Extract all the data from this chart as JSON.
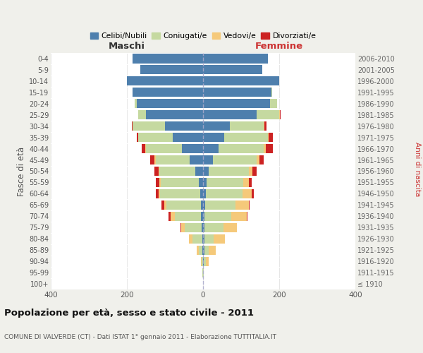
{
  "age_groups": [
    "100+",
    "95-99",
    "90-94",
    "85-89",
    "80-84",
    "75-79",
    "70-74",
    "65-69",
    "60-64",
    "55-59",
    "50-54",
    "45-49",
    "40-44",
    "35-39",
    "30-34",
    "25-29",
    "20-24",
    "15-19",
    "10-14",
    "5-9",
    "0-4"
  ],
  "birth_years": [
    "≤ 1910",
    "1911-1915",
    "1916-1920",
    "1921-1925",
    "1926-1930",
    "1931-1935",
    "1936-1940",
    "1941-1945",
    "1946-1950",
    "1951-1955",
    "1956-1960",
    "1961-1965",
    "1966-1970",
    "1971-1975",
    "1976-1980",
    "1981-1985",
    "1986-1990",
    "1991-1995",
    "1996-2000",
    "2001-2005",
    "2006-2010"
  ],
  "males": {
    "celibi": [
      0,
      0,
      0,
      2,
      2,
      3,
      5,
      6,
      8,
      12,
      20,
      35,
      55,
      80,
      100,
      150,
      175,
      185,
      200,
      165,
      185
    ],
    "coniugati": [
      0,
      1,
      3,
      10,
      25,
      45,
      70,
      90,
      105,
      100,
      95,
      90,
      95,
      90,
      85,
      20,
      5,
      0,
      0,
      0,
      0
    ],
    "vedovi": [
      0,
      0,
      2,
      5,
      10,
      10,
      10,
      5,
      3,
      2,
      2,
      2,
      2,
      0,
      0,
      0,
      0,
      0,
      0,
      0,
      0
    ],
    "divorziati": [
      0,
      0,
      0,
      0,
      0,
      2,
      5,
      8,
      8,
      10,
      10,
      12,
      10,
      5,
      2,
      0,
      0,
      0,
      0,
      0,
      0
    ]
  },
  "females": {
    "nubili": [
      0,
      0,
      2,
      3,
      3,
      3,
      4,
      5,
      8,
      10,
      15,
      25,
      40,
      55,
      70,
      140,
      175,
      180,
      200,
      155,
      170
    ],
    "coniugate": [
      0,
      1,
      5,
      12,
      25,
      50,
      70,
      80,
      95,
      95,
      105,
      115,
      120,
      115,
      90,
      60,
      20,
      2,
      0,
      0,
      0
    ],
    "vedove": [
      0,
      1,
      8,
      18,
      30,
      35,
      40,
      35,
      25,
      15,
      10,
      8,
      5,
      3,
      2,
      2,
      0,
      0,
      0,
      0,
      0
    ],
    "divorziate": [
      0,
      0,
      0,
      0,
      0,
      0,
      2,
      3,
      5,
      8,
      10,
      12,
      18,
      10,
      5,
      2,
      0,
      0,
      0,
      0,
      0
    ]
  },
  "colors": {
    "celibi": "#4e7fad",
    "coniugati": "#c5d9a0",
    "vedovi": "#f5c97a",
    "divorziati": "#cc2222"
  },
  "legend_labels": [
    "Celibi/Nubili",
    "Coniugati/e",
    "Vedovi/e",
    "Divorziati/e"
  ],
  "xlim": 400,
  "title": "Popolazione per età, sesso e stato civile - 2011",
  "subtitle": "COMUNE DI VALVERDE (CT) - Dati ISTAT 1° gennaio 2011 - Elaborazione TUTTITALIA.IT",
  "ylabel_left": "Fasce di età",
  "ylabel_right": "Anni di nascita",
  "xlabel_maschi": "Maschi",
  "xlabel_femmine": "Femmine",
  "bg_color": "#f0f0eb",
  "plot_bg_color": "#ffffff",
  "grid_color": "#dddddd",
  "center_line_color": "#aaaacc"
}
